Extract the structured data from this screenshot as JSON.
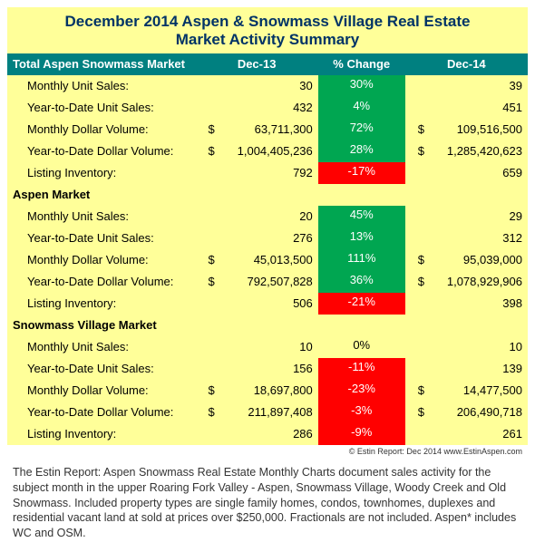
{
  "title_line1": "December 2014 Aspen & Snowmass Village Real Estate",
  "title_line2": "Market Activity Summary",
  "headers": {
    "market": "Total Aspen Snowmass Market",
    "dec13": "Dec-13",
    "change": "% Change",
    "dec14": "Dec-14"
  },
  "sections": [
    {
      "name": "Total Aspen Snowmass Market",
      "in_header": true,
      "rows": [
        {
          "label": "Monthly Unit Sales:",
          "dec13": "30",
          "pct": "30%",
          "pct_color": "green",
          "dec14": "39",
          "dollar": false
        },
        {
          "label": "Year-to-Date Unit Sales:",
          "dec13": "432",
          "pct": "4%",
          "pct_color": "green",
          "dec14": "451",
          "dollar": false
        },
        {
          "label": "Monthly Dollar Volume:",
          "dec13": "63,711,300",
          "pct": "72%",
          "pct_color": "green",
          "dec14": "109,516,500",
          "dollar": true
        },
        {
          "label": "Year-to-Date Dollar Volume:",
          "dec13": "1,004,405,236",
          "pct": "28%",
          "pct_color": "green",
          "dec14": "1,285,420,623",
          "dollar": true
        },
        {
          "label": "Listing Inventory:",
          "dec13": "792",
          "pct": "-17%",
          "pct_color": "red",
          "dec14": "659",
          "dollar": false
        }
      ]
    },
    {
      "name": "Aspen Market",
      "in_header": false,
      "rows": [
        {
          "label": "Monthly Unit Sales:",
          "dec13": "20",
          "pct": "45%",
          "pct_color": "green",
          "dec14": "29",
          "dollar": false
        },
        {
          "label": "Year-to-Date Unit Sales:",
          "dec13": "276",
          "pct": "13%",
          "pct_color": "green",
          "dec14": "312",
          "dollar": false
        },
        {
          "label": "Monthly Dollar Volume:",
          "dec13": "45,013,500",
          "pct": "111%",
          "pct_color": "green",
          "dec14": "95,039,000",
          "dollar": true
        },
        {
          "label": "Year-to-Date Dollar Volume:",
          "dec13": "792,507,828",
          "pct": "36%",
          "pct_color": "green",
          "dec14": "1,078,929,906",
          "dollar": true
        },
        {
          "label": "Listing Inventory:",
          "dec13": "506",
          "pct": "-21%",
          "pct_color": "red",
          "dec14": "398",
          "dollar": false
        }
      ]
    },
    {
      "name": "Snowmass Village Market",
      "in_header": false,
      "rows": [
        {
          "label": "Monthly Unit Sales:",
          "dec13": "10",
          "pct": "0%",
          "pct_color": "white",
          "dec14": "10",
          "dollar": false
        },
        {
          "label": "Year-to-Date Unit Sales:",
          "dec13": "156",
          "pct": "-11%",
          "pct_color": "red",
          "dec14": "139",
          "dollar": false
        },
        {
          "label": "Monthly Dollar Volume:",
          "dec13": "18,697,800",
          "pct": "-23%",
          "pct_color": "red",
          "dec14": "14,477,500",
          "dollar": true
        },
        {
          "label": "Year-to-Date Dollar Volume:",
          "dec13": "211,897,408",
          "pct": "-3%",
          "pct_color": "red",
          "dec14": "206,490,718",
          "dollar": true
        },
        {
          "label": "Listing Inventory:",
          "dec13": "286",
          "pct": "-9%",
          "pct_color": "red",
          "dec14": "261",
          "dollar": false
        }
      ]
    }
  ],
  "copyright": "© Estin Report: Dec 2014 www.EstinAspen.com",
  "footnote": "The Estin Report: Aspen Snowmass Real Estate Monthly Charts document sales activity for the subject month in the upper Roaring Fork Valley - Aspen, Snowmass Village, Woody Creek and Old Snowmass. Included property types are single family homes, condos, townhomes, duplexes and residential vacant land at sold at prices over $250,000. Fractionals are not included. Aspen* includes WC and OSM.",
  "colors": {
    "teal": "#008080",
    "yellow": "#ffff99",
    "green": "#00a651",
    "red": "#ff0000",
    "title_text": "#003366"
  }
}
